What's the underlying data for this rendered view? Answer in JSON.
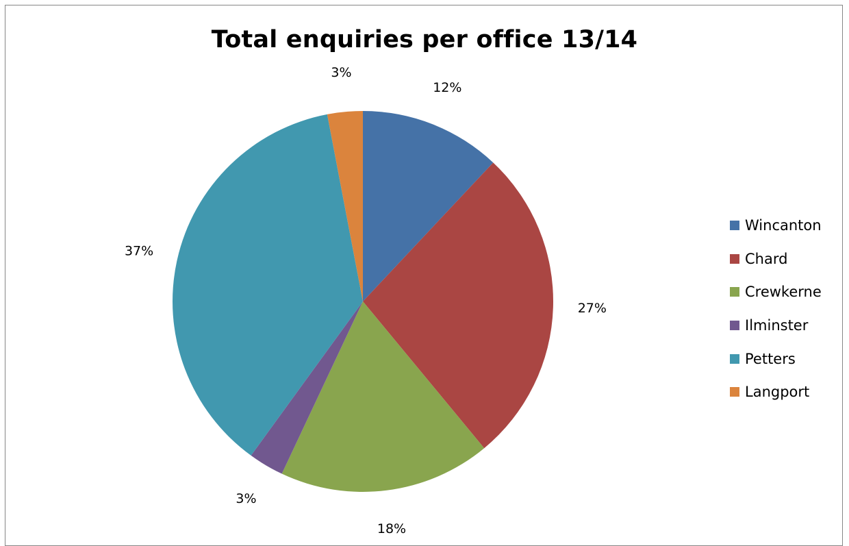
{
  "chart_data": {
    "type": "pie",
    "title": "Total enquiries per office 13/14",
    "categories": [
      "Wincanton",
      "Chard",
      "Crewkerne",
      "Ilminster",
      "Petters",
      "Langport"
    ],
    "values": [
      12,
      27,
      18,
      3,
      37,
      3
    ],
    "data_labels": [
      "12%",
      "27%",
      "18%",
      "3%",
      "37%",
      "3%"
    ],
    "colors": [
      "#4572a7",
      "#aa4643",
      "#89a54e",
      "#71588f",
      "#4198af",
      "#db843d"
    ],
    "legend_position": "right",
    "start_angle": "12 o'clock",
    "direction": "clockwise"
  }
}
